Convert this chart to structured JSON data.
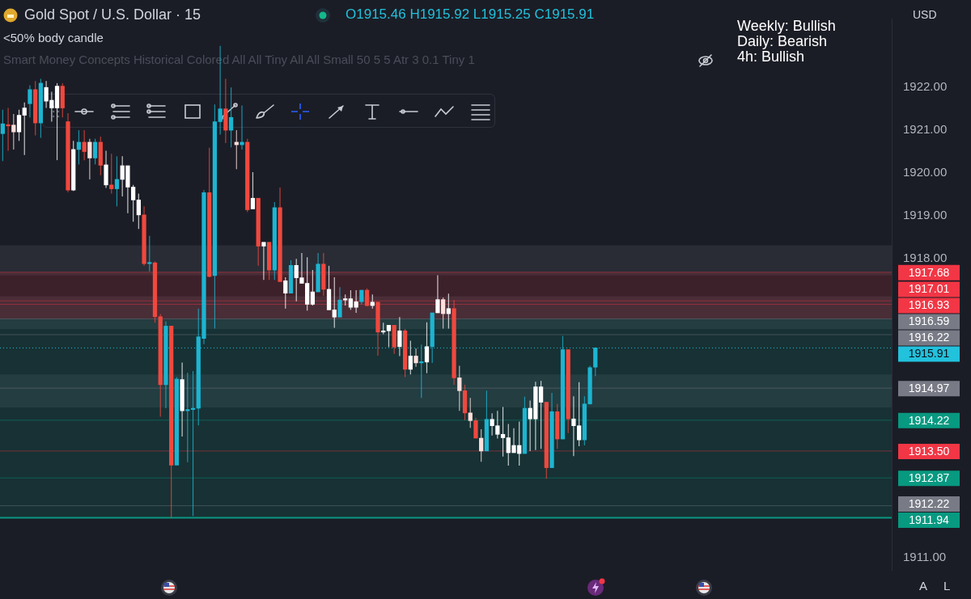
{
  "chart_data": {
    "type": "candlestick",
    "title": "Gold Spot / U.S. Dollar · 15",
    "categories": [
      null,
      null,
      null,
      null,
      null,
      null,
      null,
      null,
      null,
      null,
      null,
      null,
      null,
      null,
      null,
      null,
      null,
      null,
      null,
      null,
      null,
      null,
      null,
      null,
      null,
      null,
      null,
      null,
      null,
      null,
      null,
      null,
      null,
      null,
      null,
      null,
      null,
      null,
      null,
      null,
      null,
      null,
      null,
      null,
      null,
      null,
      null,
      null,
      null,
      null,
      null,
      null,
      null,
      null,
      null,
      null,
      null,
      null,
      null,
      null,
      null,
      null,
      null,
      null,
      null,
      null,
      null,
      null,
      null,
      null,
      null,
      null,
      null,
      null,
      null,
      null,
      null,
      null,
      null,
      null,
      null,
      null,
      null,
      null,
      null,
      null,
      null,
      null,
      null,
      null,
      null,
      null,
      null,
      null,
      null,
      null,
      null,
      null,
      null,
      null,
      null,
      null,
      null,
      null,
      null,
      null,
      null,
      null,
      null,
      null,
      null,
      null,
      null,
      null,
      null,
      null,
      null,
      null,
      null,
      null,
      null,
      null,
      null,
      null,
      null,
      null,
      null,
      null,
      null,
      null,
      null,
      null,
      null,
      null,
      null,
      null,
      null,
      null,
      null,
      null,
      null,
      null,
      null,
      null,
      null,
      null,
      null,
      null,
      null,
      null,
      null,
      null,
      null,
      null,
      null,
      null,
      null,
      null,
      null,
      null,
      null,
      null,
      null,
      null
    ],
    "ohlc": [
      [
        1920.92,
        1921.48,
        1920.28,
        1921.15
      ],
      [
        1921.13,
        1921.52,
        1920.52,
        1921.1
      ],
      [
        1921.12,
        1921.38,
        1920.55,
        1920.96
      ],
      [
        1920.96,
        1921.48,
        1920.75,
        1921.35
      ],
      [
        1921.35,
        1921.65,
        1920.42,
        1921.52
      ],
      [
        1921.62,
        1922.05,
        1921.3,
        1921.95
      ],
      [
        1921.95,
        1922.15,
        1920.88,
        1921.17
      ],
      [
        1921.17,
        1922.2,
        1920.82,
        1922.1
      ],
      [
        1921.68,
        1922.15,
        1921.52,
        1922
      ],
      [
        1921.52,
        1921.9,
        1921.2,
        1921.7
      ],
      [
        1921.52,
        1922.1,
        1920.3,
        1922.03
      ],
      [
        1922.03,
        1922.1,
        1921.3,
        1921.52
      ],
      [
        1921.2,
        1921.4,
        1919.55,
        1919.6
      ],
      [
        1919.6,
        1920.75,
        1919.58,
        1920.55
      ],
      [
        1920.55,
        1921,
        1920.2,
        1920.72
      ],
      [
        1920.72,
        1921,
        1920.3,
        1920.5
      ],
      [
        1920.72,
        1920.8,
        1919.85,
        1920.35
      ],
      [
        1920.35,
        1920.8,
        1920.2,
        1920.72
      ],
      [
        1920.72,
        1920.85,
        1919.95,
        1920.18
      ],
      [
        1920.19,
        1920.52,
        1919.65,
        1919.72
      ],
      [
        1919.72,
        1920.45,
        1919.52,
        1919.63
      ],
      [
        1919.63,
        1920.39,
        1919.22,
        1919.85
      ],
      [
        1919.85,
        1920.39,
        1919.45,
        1920.17
      ],
      [
        1920.17,
        1920.17,
        1919.06,
        1919.67
      ],
      [
        1919.67,
        1919.72,
        1918.86,
        1919.37
      ],
      [
        1919.37,
        1919.52,
        1918.69,
        1919.02
      ],
      [
        1919.02,
        1919.22,
        1917.83,
        1917.88
      ],
      [
        1917.88,
        1918.53,
        1917.7,
        1917.9
      ],
      [
        1917.9,
        1917.93,
        1916.5,
        1916.64
      ],
      [
        1916.64,
        1916.7,
        1914.3,
        1915.05
      ],
      [
        1915.05,
        1916.53,
        1914.5,
        1916.42
      ],
      [
        1916.42,
        1916.42,
        1911.94,
        1913.17
      ],
      [
        1913.17,
        1915.23,
        1913.17,
        1915.18
      ],
      [
        1915.17,
        1915.57,
        1913.84,
        1914.44
      ],
      [
        1914.44,
        1915.33,
        1913.24,
        1914.47
      ],
      [
        1914.47,
        1915.37,
        1911.98,
        1914.5
      ],
      [
        1914.5,
        1916.83,
        1914.1,
        1916.17
      ],
      [
        1916.13,
        1919.6,
        1916,
        1919.54
      ],
      [
        1919.54,
        1920.59,
        1917.56,
        1917.58
      ],
      [
        1917.6,
        1921.6,
        1916.36,
        1921.2
      ],
      [
        1921.2,
        1922.97,
        1920.9,
        1921.5
      ],
      [
        1921.5,
        1922.2,
        1920.7,
        1921
      ],
      [
        1921,
        1922,
        1920.6,
        1921.3
      ],
      [
        1920.72,
        1921,
        1920.09,
        1920.66
      ],
      [
        1920.66,
        1921.58,
        1920.55,
        1920.72
      ],
      [
        1920.72,
        1920.8,
        1919.09,
        1919.14
      ],
      [
        1919.16,
        1920.02,
        1919.16,
        1919.41
      ],
      [
        1919.41,
        1919.41,
        1917.83,
        1918.29
      ],
      [
        1918.29,
        1918.38,
        1917.5,
        1918.38
      ],
      [
        1918.38,
        1918.38,
        1917.5,
        1917.73
      ],
      [
        1917.73,
        1919.32,
        1917.5,
        1919.19
      ],
      [
        1919.19,
        1919.66,
        1917.46,
        1917.46
      ],
      [
        1917.48,
        1917.56,
        1916.83,
        1917.19
      ],
      [
        1917.19,
        1917.96,
        1917.19,
        1917.84
      ],
      [
        1917.84,
        1917.99,
        1917,
        1917.55
      ],
      [
        1917.55,
        1918.13,
        1917.42,
        1917.42
      ],
      [
        1917.42,
        1918.03,
        1916.78,
        1916.93
      ],
      [
        1916.93,
        1917.73,
        1916.9,
        1917.22
      ],
      [
        1917.22,
        1918.13,
        1917.22,
        1917.87
      ],
      [
        1917.87,
        1918.13,
        1917.13,
        1917.28
      ],
      [
        1917.28,
        1917.83,
        1916.8,
        1916.8
      ],
      [
        1916.8,
        1917.56,
        1916.38,
        1916.63
      ],
      [
        1916.63,
        1917.33,
        1916.63,
        1917.03
      ],
      [
        1917.03,
        1917.16,
        1916.9,
        1917.06
      ],
      [
        1917.06,
        1917.26,
        1916.8,
        1916.86
      ],
      [
        1916.86,
        1917.26,
        1916.73,
        1916.99
      ],
      [
        1916.99,
        1917.26,
        1916.93,
        1917.26
      ],
      [
        1917.26,
        1917.3,
        1916.88,
        1916.9
      ],
      [
        1916.9,
        1917.16,
        1916.83,
        1916.98
      ],
      [
        1916.98,
        1916.98,
        1915.73,
        1916.28
      ],
      [
        1916.28,
        1916.5,
        1916.23,
        1916.31
      ],
      [
        1916.31,
        1916.44,
        1915.93,
        1916.44
      ],
      [
        1916.44,
        1916.44,
        1915.77,
        1915.93
      ],
      [
        1915.94,
        1916.63,
        1915.72,
        1916.31
      ],
      [
        1916.31,
        1916.35,
        1915.23,
        1915.41
      ],
      [
        1915.41,
        1916.08,
        1915.29,
        1915.72
      ],
      [
        1915.72,
        1915.9,
        1915.47,
        1915.56
      ],
      [
        1915.56,
        1915.99,
        1914.74,
        1915.58
      ],
      [
        1915.58,
        1916.51,
        1915.32,
        1915.94
      ],
      [
        1915.94,
        1916.73,
        1915.56,
        1916.73
      ],
      [
        1916.73,
        1917.61,
        1916.73,
        1917.04
      ],
      [
        1917.04,
        1917.09,
        1916.36,
        1916.71
      ],
      [
        1916.71,
        1917.18,
        1916.36,
        1916.83
      ],
      [
        1916.83,
        1917.03,
        1915.05,
        1915.21
      ],
      [
        1915.21,
        1915.49,
        1914.44,
        1914.91
      ],
      [
        1914.91,
        1915.05,
        1914.22,
        1914.39
      ],
      [
        1914.39,
        1914.74,
        1914.04,
        1914.21
      ],
      [
        1914.21,
        1914.28,
        1913.8,
        1913.8
      ],
      [
        1913.8,
        1914.01,
        1913.25,
        1913.5
      ],
      [
        1913.5,
        1914.91,
        1913.5,
        1914.24
      ],
      [
        1914.24,
        1914.38,
        1913.86,
        1914.09
      ],
      [
        1914.09,
        1914.44,
        1913.79,
        1913.89
      ],
      [
        1913.89,
        1914.53,
        1913.37,
        1913.81
      ],
      [
        1913.81,
        1914.13,
        1913.16,
        1913.46
      ],
      [
        1913.46,
        1914.03,
        1913.46,
        1913.63
      ],
      [
        1913.63,
        1914.19,
        1913.16,
        1913.44
      ],
      [
        1913.44,
        1914.77,
        1913.44,
        1914.5
      ],
      [
        1914.5,
        1914.68,
        1913.5,
        1914.25
      ],
      [
        1914.25,
        1915.12,
        1913.52,
        1915
      ],
      [
        1915,
        1915.14,
        1913.55,
        1914.64
      ],
      [
        1914.64,
        1914.65,
        1912.85,
        1913.11
      ],
      [
        1913.11,
        1914.86,
        1913.11,
        1914.42
      ],
      [
        1914.42,
        1914.6,
        1913.55,
        1913.78
      ],
      [
        1913.78,
        1916.19,
        1913.78,
        1915.87
      ],
      [
        1915.87,
        1915.88,
        1913.92,
        1914.25
      ],
      [
        1914.25,
        1914.78,
        1913.38,
        1914.09
      ],
      [
        1914.09,
        1915.11,
        1913.61,
        1913.76
      ],
      [
        1913.76,
        1914.78,
        1913.63,
        1914.6
      ],
      [
        1914.6,
        1915.49,
        1914.59,
        1915.45
      ],
      [
        1915.46,
        1915.92,
        1915.25,
        1915.91
      ],
      null,
      null,
      null,
      null,
      null,
      null,
      null,
      null,
      null,
      null,
      null,
      null,
      null,
      null,
      null,
      null,
      null,
      null,
      null,
      null,
      null,
      null,
      null,
      null,
      null,
      null,
      null,
      null,
      null,
      null,
      null,
      null,
      null,
      null,
      null,
      null,
      null,
      null,
      null,
      null,
      null,
      null,
      null,
      null,
      null,
      null,
      null,
      null,
      null,
      null,
      null,
      null,
      null,
      null
    ],
    "colors": [
      "#1cb5d1",
      "#f0483e",
      "#fde0dc",
      "#ffffff",
      "#ffffff",
      "#1cb5d1",
      "#f0483e",
      "#1cb5d1",
      "#ffffff",
      "#ffffff",
      "#ffffff",
      "#f0483e",
      "#f0483e",
      "#ffffff",
      "#1cb5d1",
      "#f0483e",
      "#fde0dc",
      "#1cb5d1",
      "#f0483e",
      "#ffffff",
      "#f0483e",
      "#1cb5d1",
      "#ffffff",
      "#ffffff",
      "#ffffff",
      "#ffffff",
      "#f0483e",
      "#1cb5d1",
      "#f0483e",
      "#f0483e",
      "#1cb5d1",
      "#f0483e",
      "#1cb5d1",
      "#ffffff",
      "#1cb5d1",
      "#1cb5d1",
      "#1cb5d1",
      "#1cb5d1",
      "#f0483e",
      "#1cb5d1",
      "#1cb5d1",
      "#f0483e",
      "#1cb5d1",
      "#fde0dc",
      "#1cb5d1",
      "#f0483e",
      "#ffffff",
      "#f0483e",
      "#ffffff",
      "#f0483e",
      "#1cb5d1",
      "#f0483e",
      "#ffffff",
      "#1cb5d1",
      "#ffffff",
      "#ffffff",
      "#ffffff",
      "#ffffff",
      "#1cb5d1",
      "#f0483e",
      "#ffffff",
      "#ffffff",
      "#1cb5d1",
      "#ffffff",
      "#ffffff",
      "#ffffff",
      "#1cb5d1",
      "#f0483e",
      "#ffffff",
      "#f0483e",
      "#ffffff",
      "#ffffff",
      "#f0483e",
      "#ffffff",
      "#f0483e",
      "#ffffff",
      "#fde0dc",
      "#1cb5d1",
      "#ffffff",
      "#1cb5d1",
      "#ffffff",
      "#fde0dc",
      "#ffffff",
      "#f0483e",
      "#fde0dc",
      "#f0483e",
      "#fde0dc",
      "#f0483e",
      "#fde0dc",
      "#1cb5d1",
      "#ffffff",
      "#ffffff",
      "#ffffff",
      "#ffffff",
      "#ffffff",
      "#ffffff",
      "#1cb5d1",
      "#ffffff",
      "#ffffff",
      "#ffffff",
      "#f0483e",
      "#1cb5d1",
      "#f0483e",
      "#1cb5d1",
      "#f0483e",
      "#ffffff",
      "#ffffff",
      "#1cb5d1",
      "#1cb5d1",
      "#1cb5d1",
      null,
      null,
      null,
      null,
      null,
      null,
      null,
      null,
      null,
      null,
      null,
      null,
      null,
      null,
      null,
      null,
      null,
      null,
      null,
      null,
      null,
      null,
      null,
      null,
      null,
      null,
      null,
      null,
      null,
      null,
      null,
      null,
      null,
      null,
      null,
      null,
      null,
      null,
      null,
      null,
      null,
      null,
      null,
      null,
      null,
      null,
      null,
      null,
      null,
      null,
      null,
      null,
      null,
      null
    ],
    "ylim": [
      1910.72,
      1923.61
    ],
    "yticks": [
      {
        "value": 1911,
        "label": "1911.00"
      },
      {
        "value": 1918,
        "label": "1918.00"
      },
      {
        "value": 1919,
        "label": "1919.00"
      },
      {
        "value": 1920,
        "label": "1920.00"
      },
      {
        "value": 1921,
        "label": "1921.00"
      },
      {
        "value": 1922,
        "label": "1922.00"
      }
    ],
    "tick_labels": "y",
    "legend": false,
    "bands": [
      {
        "axis": "y",
        "from": 1917.61,
        "to": 1918.31,
        "color": "#787b86"
      },
      {
        "axis": "y",
        "from": 1914.52,
        "to": 1915.29,
        "color": "#787b86"
      },
      {
        "axis": "y",
        "from": 1916.35,
        "to": 1917.12,
        "color": "#787b86"
      },
      {
        "axis": "y",
        "from": 1916.59,
        "to": 1917.68,
        "color": "#f23645"
      },
      {
        "axis": "y",
        "from": 1911.94,
        "to": 1916.59,
        "color": "#089981"
      }
    ],
    "ref_lines": [
      {
        "axis": "y",
        "value": 1917.68,
        "label": "1917.68",
        "color": "#f23645",
        "line_style": "solid"
      },
      {
        "axis": "y",
        "value": 1917.01,
        "label": "1917.01",
        "color": "#f23645",
        "line_style": "solid"
      },
      {
        "axis": "y",
        "value": 1916.93,
        "label": "1916.93",
        "color": "#f23645",
        "line_style": "solid"
      },
      {
        "axis": "y",
        "value": 1916.59,
        "label": "1916.59",
        "color": "#787b86",
        "line_style": "solid"
      },
      {
        "axis": "y",
        "value": 1916.22,
        "label": "1916.22",
        "color": "#787b86",
        "line_style": "solid"
      },
      {
        "axis": "y",
        "value": 1915.91,
        "label": "1915.91",
        "color": "#22c1dc",
        "line_style": "dotted"
      },
      {
        "axis": "y",
        "value": 1914.97,
        "label": "1914.97",
        "color": "#787b86",
        "line_style": "solid"
      },
      {
        "axis": "y",
        "value": 1914.22,
        "label": "1914.22",
        "color": "#089981",
        "line_style": "solid"
      },
      {
        "axis": "y",
        "value": 1913.5,
        "label": "1913.50",
        "color": "#f23645",
        "line_style": "solid"
      },
      {
        "axis": "y",
        "value": 1912.87,
        "label": "1912.87",
        "color": "#089981",
        "line_style": "solid"
      },
      {
        "axis": "y",
        "value": 1912.22,
        "label": "1912.22",
        "color": "#787b86",
        "line_style": "solid"
      },
      {
        "axis": "y",
        "value": 1911.94,
        "label": "1911.94",
        "color": "#089981",
        "line_style": "solid"
      }
    ],
    "annotations": [
      "O1915.46 H1915.92 L1915.25 C1915.91",
      "<50% body candle",
      "Smart Money Concepts Historical Colored All All Tiny All All Small 50 5 5 Atr 3 0.1 Tiny 1",
      "Weekly: Bullish",
      "Daily: Bearish",
      "4h: Bullish",
      "USD",
      "A",
      "L"
    ]
  }
}
